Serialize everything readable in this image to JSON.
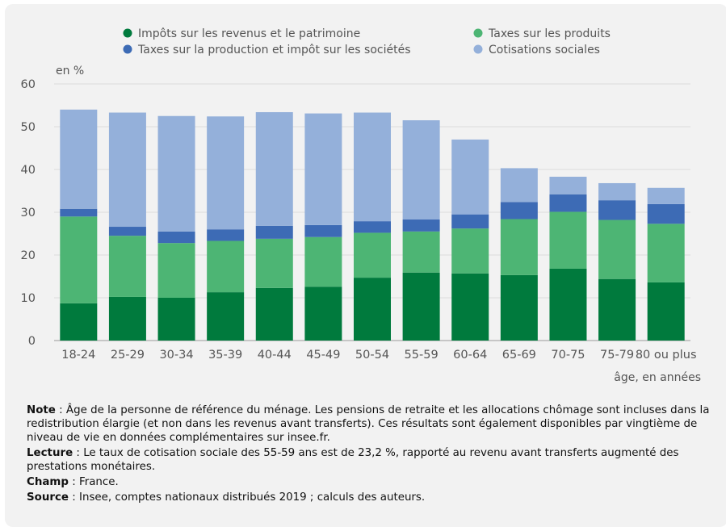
{
  "chart_data": {
    "type": "bar",
    "stacked": true,
    "title": "",
    "y_unit_label": "en %",
    "xlabel": "âge, en années",
    "ylabel": "",
    "ylim": [
      0,
      60
    ],
    "yticks": [
      0,
      10,
      20,
      30,
      40,
      50,
      60
    ],
    "grid": true,
    "legend_position": "top",
    "categories": [
      "18-24",
      "25-29",
      "30-34",
      "35-39",
      "40-44",
      "45-49",
      "50-54",
      "55-59",
      "60-64",
      "65-69",
      "70-75",
      "75-79",
      "80 ou plus"
    ],
    "series": [
      {
        "name": "Impôts sur les revenus et le patrimoine",
        "color": "#007a3d",
        "values": [
          8.7,
          10.2,
          10.0,
          11.3,
          12.3,
          12.6,
          14.7,
          15.9,
          15.7,
          15.3,
          16.8,
          14.4,
          13.6
        ]
      },
      {
        "name": "Taxes sur les produits",
        "color": "#4db574",
        "values": [
          20.3,
          14.3,
          12.8,
          12.0,
          11.5,
          11.6,
          10.5,
          9.6,
          10.5,
          13.1,
          13.3,
          13.8,
          13.7
        ]
      },
      {
        "name": "Taxes sur la production et impôt sur les sociétés",
        "color": "#3d6bb5",
        "values": [
          1.8,
          2.1,
          2.7,
          2.7,
          3.0,
          2.8,
          2.7,
          2.8,
          3.3,
          4.0,
          4.1,
          4.6,
          4.6
        ]
      },
      {
        "name": "Cotisations sociales",
        "color": "#94b0da",
        "values": [
          23.2,
          26.7,
          27.0,
          26.4,
          26.6,
          26.1,
          25.4,
          23.2,
          17.5,
          7.9,
          4.1,
          4.0,
          3.8
        ]
      }
    ]
  },
  "notes": [
    {
      "label": "Note",
      "text": " : Âge de la personne de référence du ménage. Les pensions de retraite et les allocations chômage sont incluses dans la redistribution élargie (et non dans les revenus avant transferts). Ces résultats sont également disponibles par vingtième de niveau de vie en données complémentaires sur insee.fr."
    },
    {
      "label": "Lecture",
      "text": " : Le taux de cotisation sociale des 55-59 ans est de 23,2 %, rapporté au revenu avant transferts augmenté des prestations monétaires."
    },
    {
      "label": "Champ",
      "text": " : France."
    },
    {
      "label": "Source",
      "text": " : Insee, comptes nationaux distribués 2019 ; calculs des auteurs."
    }
  ]
}
